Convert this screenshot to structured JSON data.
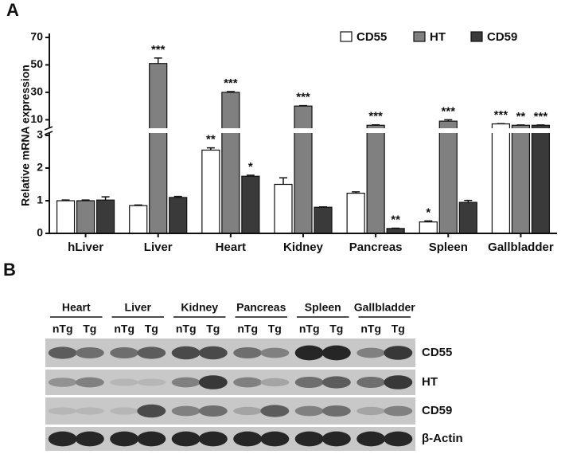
{
  "panel_a": "A",
  "panel_b": "B",
  "chart_data": {
    "type": "bar",
    "y_label": "Relative mRNA expression",
    "categories": [
      "hLiver",
      "Liver",
      "Heart",
      "Kidney",
      "Pancreas",
      "Spleen",
      "Gallbladder"
    ],
    "series": [
      {
        "name": "CD55",
        "color": "#ffffff",
        "values": [
          1.0,
          0.85,
          2.55,
          1.5,
          1.23,
          0.35,
          7
        ],
        "errors": [
          0.02,
          0.02,
          0.07,
          0.2,
          0.04,
          0.03,
          0.2
        ],
        "significance": [
          null,
          null,
          "**",
          null,
          null,
          "*",
          "***"
        ]
      },
      {
        "name": "HT",
        "color": "#808080",
        "values": [
          1.0,
          51,
          30,
          20,
          6,
          9,
          6
        ],
        "errors": [
          0.02,
          4,
          0.5,
          0.3,
          0.3,
          1,
          0.2
        ],
        "significance": [
          null,
          "***",
          "***",
          "***",
          "***",
          "***",
          "**"
        ]
      },
      {
        "name": "CD59",
        "color": "#3a3a3a",
        "values": [
          1.02,
          1.1,
          1.75,
          0.8,
          0.15,
          0.95,
          6
        ],
        "errors": [
          0.1,
          0.03,
          0.03,
          0.01,
          0.01,
          0.06,
          0.2
        ],
        "significance": [
          null,
          null,
          "*",
          null,
          "**",
          null,
          "***"
        ]
      }
    ],
    "ylim": [
      0,
      70
    ],
    "y_break": [
      3,
      5
    ],
    "yticks": [
      0,
      1,
      2,
      3,
      10,
      30,
      50,
      70
    ],
    "legend": "top-right"
  },
  "blot": {
    "tissues": [
      "Heart",
      "Liver",
      "Kidney",
      "Pancreas",
      "Spleen",
      "Gallbladder"
    ],
    "lanes": [
      "nTg",
      "Tg"
    ],
    "rows": [
      "CD55",
      "HT",
      "CD59",
      "β-Actin"
    ]
  }
}
